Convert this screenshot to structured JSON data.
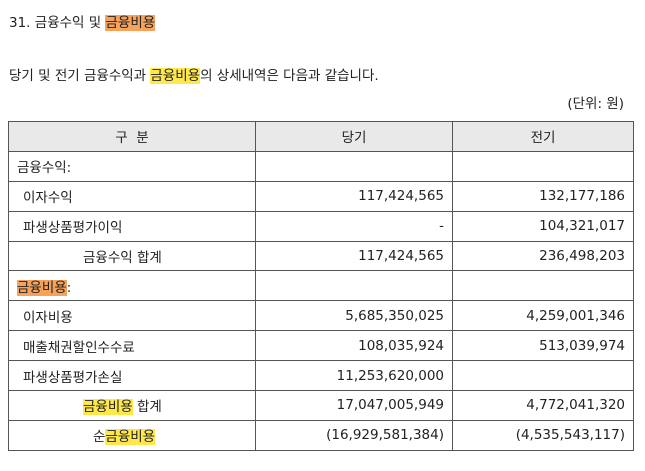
{
  "section": {
    "number": "31.",
    "title_part1": "금융수익 및",
    "title_highlight": "금융비용"
  },
  "description": {
    "part1": "당기 및 전기 금융수익과",
    "highlight": "금융비용",
    "part2": "의 상세내역은 다음과 같습니다."
  },
  "unit_label": "(단위: 원)",
  "table": {
    "headers": [
      "구  분",
      "당기",
      "전기"
    ],
    "income_section_label": "금융수익:",
    "income_rows": [
      {
        "label": "이자수익",
        "current": "117,424,565",
        "prior": "132,177,186"
      },
      {
        "label": "파생상품평가이익",
        "current": "-",
        "prior": "104,321,017"
      }
    ],
    "income_total": {
      "label": "금융수익 합계",
      "current": "117,424,565",
      "prior": "236,498,203"
    },
    "expense_section_label_highlight": "금융비용",
    "expense_section_label_suffix": ":",
    "expense_rows": [
      {
        "label": "이자비용",
        "current": "5,685,350,025",
        "prior": "4,259,001,346"
      },
      {
        "label": "매출채권할인수수료",
        "current": "108,035,924",
        "prior": "513,039,974"
      },
      {
        "label": "파생상품평가손실",
        "current": "11,253,620,000",
        "prior": ""
      }
    ],
    "expense_total": {
      "label_highlight": "금융비용",
      "label_suffix": " 합계",
      "current": "17,047,005,949",
      "prior": "4,772,041,320"
    },
    "net": {
      "label_prefix": "순",
      "label_highlight": "금융비용",
      "current": "(16,929,581,384)",
      "prior": "(4,535,543,117)"
    }
  },
  "colors": {
    "strong_highlight": "#f6a25a",
    "highlight": "#ffe84c",
    "header_bg": "#e9e9e9"
  }
}
